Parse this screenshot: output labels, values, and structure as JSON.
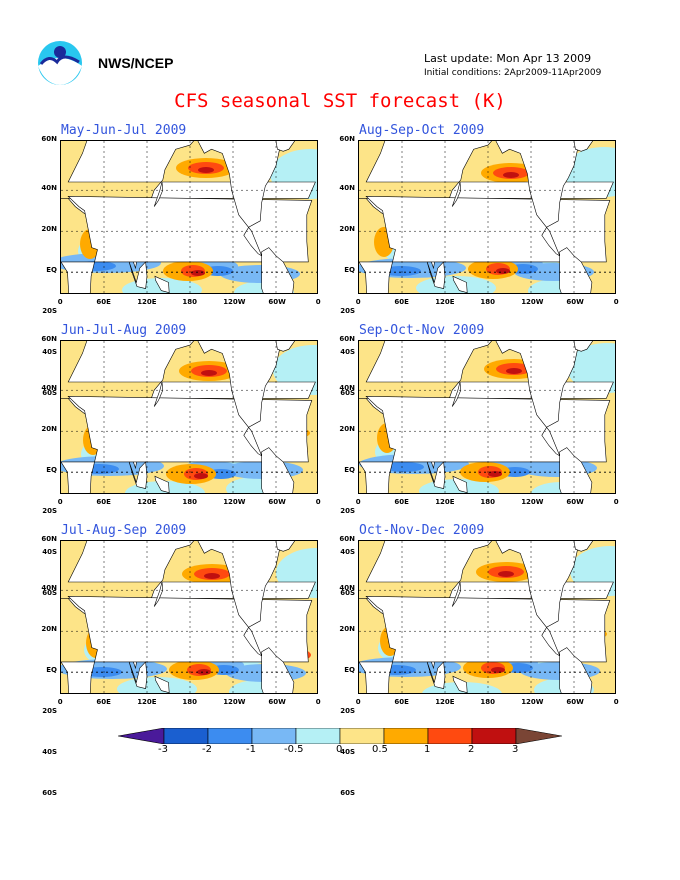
{
  "header": {
    "org": "NWS/NCEP",
    "last_update": "Last update: Mon Apr 13 2009",
    "initial_conditions": "Initial conditions: 2Apr2009-11Apr2009",
    "title": "CFS seasonal SST forecast (K)"
  },
  "panels": [
    {
      "title": "May-Jun-Jul 2009"
    },
    {
      "title": "Aug-Sep-Oct 2009"
    },
    {
      "title": "Jun-Jul-Aug 2009"
    },
    {
      "title": "Sep-Oct-Nov 2009"
    },
    {
      "title": "Jul-Aug-Sep 2009"
    },
    {
      "title": "Oct-Nov-Dec 2009"
    }
  ],
  "axes": {
    "lat_labels": [
      "60N",
      "40N",
      "20N",
      "EQ",
      "20S",
      "40S",
      "60S"
    ],
    "lon_labels": [
      "0",
      "60E",
      "120E",
      "180",
      "120W",
      "60W",
      "0"
    ]
  },
  "colorbar": {
    "labels": [
      "-3",
      "-2",
      "-1",
      "-0.5",
      "0",
      "0.5",
      "1",
      "2",
      "3"
    ],
    "colors": [
      "#4a1a9a",
      "#1a5fd0",
      "#3c8cf0",
      "#78b8f5",
      "#b5f0f5",
      "#fde488",
      "#ffaa00",
      "#ff4a10",
      "#c01010",
      "#7a4535"
    ]
  },
  "palette": {
    "land": "#ffffff",
    "title_red": "#ff0000",
    "panel_title_blue": "#3355dd"
  }
}
